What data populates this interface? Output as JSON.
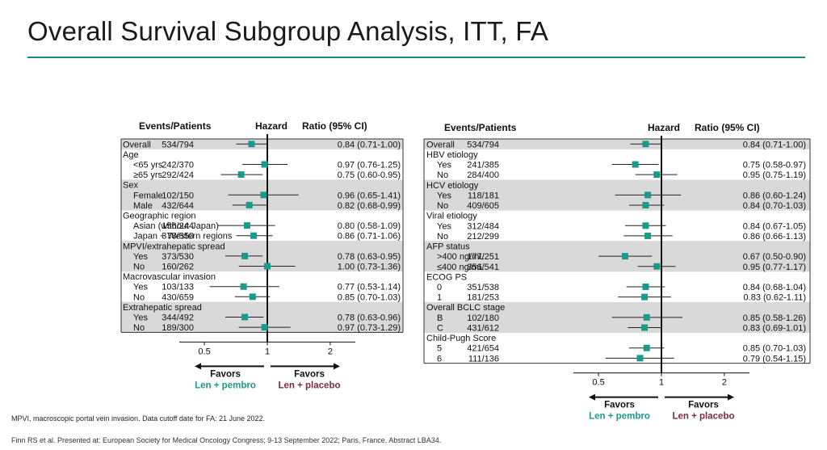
{
  "slide": {
    "title": "Overall Survival Subgroup Analysis, ITT, FA",
    "footnote": "MPVI, macroscopic portal vein invasion. Data cutoff date for FA: 21 June 2022.",
    "citation": "Finn RS et al. Presented at: European Society for Medical Oncology Congress; 9-13 September 2022; Paris, France. Abstract LBA34."
  },
  "colors": {
    "accent": "#1a8a80",
    "marker": "#1a9a8a",
    "placebo": "#7a2a4a",
    "band": "#d9d9d9"
  },
  "chart_data": [
    {
      "type": "forest",
      "headers": {
        "events": "Events/Patients",
        "hr_a": "Hazard",
        "hr_b": "Ratio (95% CI)"
      },
      "xscale": "log",
      "xlim": [
        0.4,
        2.5
      ],
      "reference": 1,
      "ticks": [
        {
          "v": 0.5,
          "label": "0.5"
        },
        {
          "v": 1,
          "label": "1"
        },
        {
          "v": 2,
          "label": "2"
        }
      ],
      "favors_left": {
        "a": "Favors",
        "b": "Len + pembro"
      },
      "favors_right": {
        "a": "Favors",
        "b": "Len + placebo"
      },
      "rows": [
        {
          "label": "Overall",
          "indent": 0,
          "events": "534/794",
          "hr": 0.84,
          "lo": 0.71,
          "hi": 1.0,
          "text": "0.84 (0.71-1.00)",
          "band": true
        },
        {
          "label": "Age",
          "indent": 0,
          "header": true,
          "band": false
        },
        {
          "label": "<65 yrs",
          "indent": 1,
          "events": "242/370",
          "hr": 0.97,
          "lo": 0.76,
          "hi": 1.25,
          "text": "0.97 (0.76-1.25)",
          "band": false
        },
        {
          "label": "≥65 yrs",
          "indent": 1,
          "events": "292/424",
          "hr": 0.75,
          "lo": 0.6,
          "hi": 0.95,
          "text": "0.75 (0.60-0.95)",
          "band": false
        },
        {
          "label": "Sex",
          "indent": 0,
          "header": true,
          "band": true
        },
        {
          "label": "Female",
          "indent": 1,
          "events": "102/150",
          "hr": 0.96,
          "lo": 0.65,
          "hi": 1.41,
          "text": "0.96 (0.65-1.41)",
          "band": true
        },
        {
          "label": "Male",
          "indent": 1,
          "events": "432/644",
          "hr": 0.82,
          "lo": 0.68,
          "hi": 0.99,
          "text": "0.82 (0.68-0.99)",
          "band": true
        },
        {
          "label": "Geographic region",
          "indent": 0,
          "header": true,
          "band": false
        },
        {
          "label": "Asian (without Japan)",
          "indent": 1,
          "events": "156/244",
          "hr": 0.8,
          "lo": 0.58,
          "hi": 1.09,
          "text": "0.80 (0.58-1.09)",
          "band": false
        },
        {
          "label": "Japan + Western regions",
          "indent": 1,
          "events": "378/550",
          "hr": 0.86,
          "lo": 0.71,
          "hi": 1.06,
          "text": "0.86 (0.71-1.06)",
          "band": false
        },
        {
          "label": "MPVI/extrahepatic spread",
          "indent": 0,
          "header": true,
          "band": true
        },
        {
          "label": "Yes",
          "indent": 1,
          "events": "373/530",
          "hr": 0.78,
          "lo": 0.63,
          "hi": 0.95,
          "text": "0.78 (0.63-0.95)",
          "band": true
        },
        {
          "label": "No",
          "indent": 1,
          "events": "160/262",
          "hr": 1.0,
          "lo": 0.73,
          "hi": 1.36,
          "text": "1.00 (0.73-1.36)",
          "band": true
        },
        {
          "label": "Macrovascular invasion",
          "indent": 0,
          "header": true,
          "band": false
        },
        {
          "label": "Yes",
          "indent": 1,
          "events": "103/133",
          "hr": 0.77,
          "lo": 0.53,
          "hi": 1.14,
          "text": "0.77 (0.53-1.14)",
          "band": false
        },
        {
          "label": "No",
          "indent": 1,
          "events": "430/659",
          "hr": 0.85,
          "lo": 0.7,
          "hi": 1.03,
          "text": "0.85 (0.70-1.03)",
          "band": false
        },
        {
          "label": "Extrahepatic spread",
          "indent": 0,
          "header": true,
          "band": true
        },
        {
          "label": "Yes",
          "indent": 1,
          "events": "344/492",
          "hr": 0.78,
          "lo": 0.63,
          "hi": 0.96,
          "text": "0.78 (0.63-0.96)",
          "band": true
        },
        {
          "label": "No",
          "indent": 1,
          "events": "189/300",
          "hr": 0.97,
          "lo": 0.73,
          "hi": 1.29,
          "text": "0.97 (0.73-1.29)",
          "band": true
        }
      ]
    },
    {
      "type": "forest",
      "headers": {
        "events": "Events/Patients",
        "hr_a": "Hazard",
        "hr_b": "Ratio (95% CI)"
      },
      "xscale": "log",
      "xlim": [
        0.4,
        2.5
      ],
      "reference": 1,
      "ticks": [
        {
          "v": 0.5,
          "label": "0.5"
        },
        {
          "v": 1,
          "label": "1"
        },
        {
          "v": 2,
          "label": "2"
        }
      ],
      "favors_left": {
        "a": "Favors",
        "b": "Len + pembro"
      },
      "favors_right": {
        "a": "Favors",
        "b": "Len + placebo"
      },
      "rows": [
        {
          "label": "Overall",
          "indent": 0,
          "events": "534/794",
          "hr": 0.84,
          "lo": 0.71,
          "hi": 1.0,
          "text": "0.84 (0.71-1.00)",
          "band": true
        },
        {
          "label": "HBV etiology",
          "indent": 0,
          "header": true,
          "band": false
        },
        {
          "label": "Yes",
          "indent": 1,
          "events": "241/385",
          "hr": 0.75,
          "lo": 0.58,
          "hi": 0.97,
          "text": "0.75 (0.58-0.97)",
          "band": false
        },
        {
          "label": "No",
          "indent": 1,
          "events": "284/400",
          "hr": 0.95,
          "lo": 0.75,
          "hi": 1.19,
          "text": "0.95 (0.75-1.19)",
          "band": false
        },
        {
          "label": "HCV etiology",
          "indent": 0,
          "header": true,
          "band": true
        },
        {
          "label": "Yes",
          "indent": 1,
          "events": "118/181",
          "hr": 0.86,
          "lo": 0.6,
          "hi": 1.24,
          "text": "0.86 (0.60-1.24)",
          "band": true
        },
        {
          "label": "No",
          "indent": 1,
          "events": "409/605",
          "hr": 0.84,
          "lo": 0.7,
          "hi": 1.03,
          "text": "0.84 (0.70-1.03)",
          "band": true
        },
        {
          "label": "Viral etiology",
          "indent": 0,
          "header": true,
          "band": false
        },
        {
          "label": "Yes",
          "indent": 1,
          "events": "312/484",
          "hr": 0.84,
          "lo": 0.67,
          "hi": 1.05,
          "text": "0.84 (0.67-1.05)",
          "band": false
        },
        {
          "label": "No",
          "indent": 1,
          "events": "212/299",
          "hr": 0.86,
          "lo": 0.66,
          "hi": 1.13,
          "text": "0.86 (0.66-1.13)",
          "band": false
        },
        {
          "label": "AFP status",
          "indent": 0,
          "header": true,
          "band": true
        },
        {
          "label": ">400 ng/mL",
          "indent": 1,
          "events": "177/251",
          "hr": 0.67,
          "lo": 0.5,
          "hi": 0.9,
          "text": "0.67 (0.50-0.90)",
          "band": true
        },
        {
          "label": "≤400 ng/mL",
          "indent": 1,
          "events": "356/541",
          "hr": 0.95,
          "lo": 0.77,
          "hi": 1.17,
          "text": "0.95 (0.77-1.17)",
          "band": true
        },
        {
          "label": "ECOG PS",
          "indent": 0,
          "header": true,
          "band": false
        },
        {
          "label": "0",
          "indent": 1,
          "events": "351/538",
          "hr": 0.84,
          "lo": 0.68,
          "hi": 1.04,
          "text": "0.84 (0.68-1.04)",
          "band": false
        },
        {
          "label": "1",
          "indent": 1,
          "events": "181/253",
          "hr": 0.83,
          "lo": 0.62,
          "hi": 1.11,
          "text": "0.83 (0.62-1.11)",
          "band": false
        },
        {
          "label": "Overall BCLC stage",
          "indent": 0,
          "header": true,
          "band": true
        },
        {
          "label": "B",
          "indent": 1,
          "events": "102/180",
          "hr": 0.85,
          "lo": 0.58,
          "hi": 1.26,
          "text": "0.85 (0.58-1.26)",
          "band": true
        },
        {
          "label": "C",
          "indent": 1,
          "events": "431/612",
          "hr": 0.83,
          "lo": 0.69,
          "hi": 1.01,
          "text": "0.83 (0.69-1.01)",
          "band": true
        },
        {
          "label": "Child-Pugh Score",
          "indent": 0,
          "header": true,
          "band": false
        },
        {
          "label": "5",
          "indent": 1,
          "events": "421/654",
          "hr": 0.85,
          "lo": 0.7,
          "hi": 1.03,
          "text": "0.85 (0.70-1.03)",
          "band": false
        },
        {
          "label": "6",
          "indent": 1,
          "events": "111/136",
          "hr": 0.79,
          "lo": 0.54,
          "hi": 1.15,
          "text": "0.79 (0.54-1.15)",
          "band": false
        }
      ]
    }
  ]
}
